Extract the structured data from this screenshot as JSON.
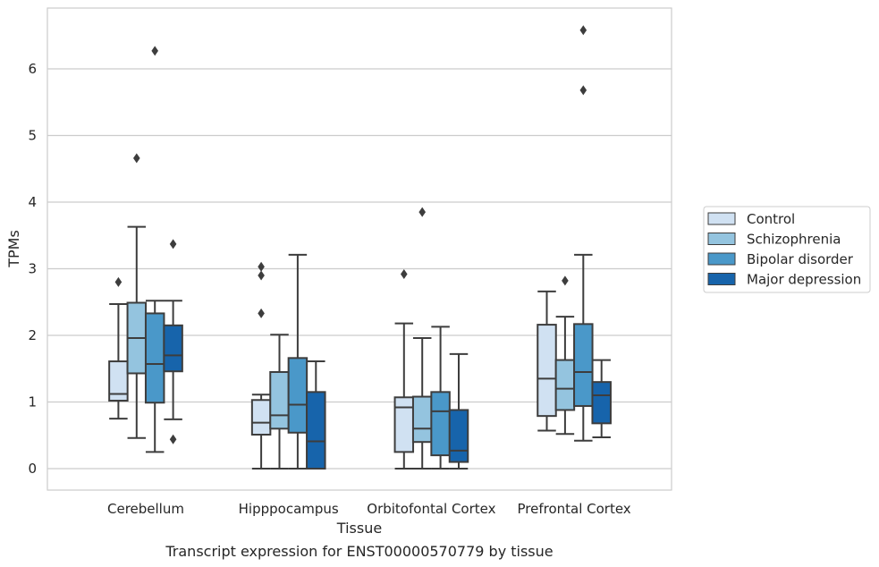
{
  "chart_data": {
    "type": "box",
    "title": "",
    "caption": "Transcript expression for ENST00000570779 by tissue",
    "xlabel": "Tissue",
    "ylabel": "TPMs",
    "ylim": [
      -0.32,
      6.95
    ],
    "yticks": [
      0,
      1,
      2,
      3,
      4,
      5,
      6
    ],
    "grid": true,
    "legend_position": "right",
    "categories": [
      "Cerebellum",
      "Hipppocampus",
      "Orbitofontal Cortex",
      "Prefrontal Cortex"
    ],
    "series": [
      {
        "name": "Control",
        "color": "#d0e1f2",
        "boxes": [
          {
            "whislo": 0.75,
            "q1": 1.02,
            "med": 1.12,
            "q3": 1.61,
            "whishi": 2.47,
            "fliers": [
              2.8
            ]
          },
          {
            "whislo": 0.0,
            "q1": 0.51,
            "med": 0.69,
            "q3": 1.03,
            "whishi": 1.11,
            "fliers": [
              2.33,
              2.9,
              3.03
            ]
          },
          {
            "whislo": 0.0,
            "q1": 0.25,
            "med": 0.92,
            "q3": 1.07,
            "whishi": 2.18,
            "fliers": [
              2.92
            ]
          },
          {
            "whislo": 0.57,
            "q1": 0.79,
            "med": 1.35,
            "q3": 2.16,
            "whishi": 2.66,
            "fliers": []
          }
        ]
      },
      {
        "name": "Schizophrenia",
        "color": "#94c4df",
        "boxes": [
          {
            "whislo": 0.46,
            "q1": 1.43,
            "med": 1.96,
            "q3": 2.49,
            "whishi": 3.63,
            "fliers": [
              4.66
            ]
          },
          {
            "whislo": 0.0,
            "q1": 0.6,
            "med": 0.8,
            "q3": 1.45,
            "whishi": 2.01,
            "fliers": []
          },
          {
            "whislo": 0.0,
            "q1": 0.4,
            "med": 0.6,
            "q3": 1.08,
            "whishi": 1.96,
            "fliers": [
              3.85
            ]
          },
          {
            "whislo": 0.52,
            "q1": 0.88,
            "med": 1.2,
            "q3": 1.63,
            "whishi": 2.28,
            "fliers": [
              2.82
            ]
          }
        ]
      },
      {
        "name": "Bipolar disorder",
        "color": "#4a98c9",
        "boxes": [
          {
            "whislo": 0.25,
            "q1": 0.99,
            "med": 1.57,
            "q3": 2.33,
            "whishi": 2.52,
            "fliers": [
              6.27
            ]
          },
          {
            "whislo": 0.0,
            "q1": 0.54,
            "med": 0.96,
            "q3": 1.66,
            "whishi": 3.21,
            "fliers": []
          },
          {
            "whislo": 0.0,
            "q1": 0.2,
            "med": 0.86,
            "q3": 1.15,
            "whishi": 2.13,
            "fliers": []
          },
          {
            "whislo": 0.42,
            "q1": 0.94,
            "med": 1.45,
            "q3": 2.17,
            "whishi": 3.21,
            "fliers": [
              5.68,
              6.58
            ]
          }
        ]
      },
      {
        "name": "Major depression",
        "color": "#1764ab",
        "boxes": [
          {
            "whislo": 0.74,
            "q1": 1.46,
            "med": 1.7,
            "q3": 2.15,
            "whishi": 2.52,
            "fliers": [
              0.44,
              3.37
            ]
          },
          {
            "whislo": 0.0,
            "q1": 0.0,
            "med": 0.41,
            "q3": 1.15,
            "whishi": 1.61,
            "fliers": []
          },
          {
            "whislo": 0.0,
            "q1": 0.1,
            "med": 0.27,
            "q3": 0.88,
            "whishi": 1.72,
            "fliers": []
          },
          {
            "whislo": 0.47,
            "q1": 0.68,
            "med": 1.1,
            "q3": 1.3,
            "whishi": 1.63,
            "fliers": []
          }
        ]
      }
    ]
  }
}
